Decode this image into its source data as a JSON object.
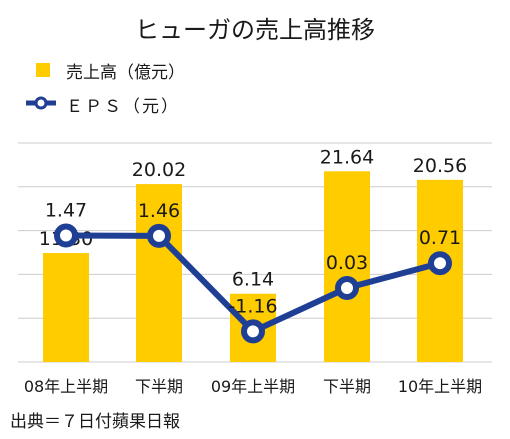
{
  "chart_data": {
    "type": "bar+line",
    "title": "ヒューガの売上高推移",
    "categories": [
      "08年上半期",
      "下半期",
      "09年上半期",
      "下半期",
      "10年上半期"
    ],
    "series": [
      {
        "name": "売上高（億元）",
        "type": "bar",
        "values": [
          11.3,
          20.02,
          6.14,
          21.64,
          20.56
        ],
        "labels": [
          "11.30",
          "20.02",
          "6.14",
          "21.64",
          "20.56"
        ],
        "color": "#ffcc00"
      },
      {
        "name": "ＥＰＳ（元）",
        "type": "line",
        "values": [
          1.47,
          1.46,
          -1.16,
          0.03,
          0.71
        ],
        "labels": [
          "1.47",
          "1.46",
          "-1.16",
          "0.03",
          "0.71"
        ],
        "color": "#1f3f95"
      }
    ],
    "bar_axis": {
      "ylim": [
        -2.5,
        27.5
      ]
    },
    "line_axis": {
      "ylim": [
        -2.0,
        4.5
      ]
    },
    "gridlines": true,
    "grid_color": "#cccccc",
    "legend_position": "top-left",
    "source": "出典＝７日付蘋果日報"
  }
}
